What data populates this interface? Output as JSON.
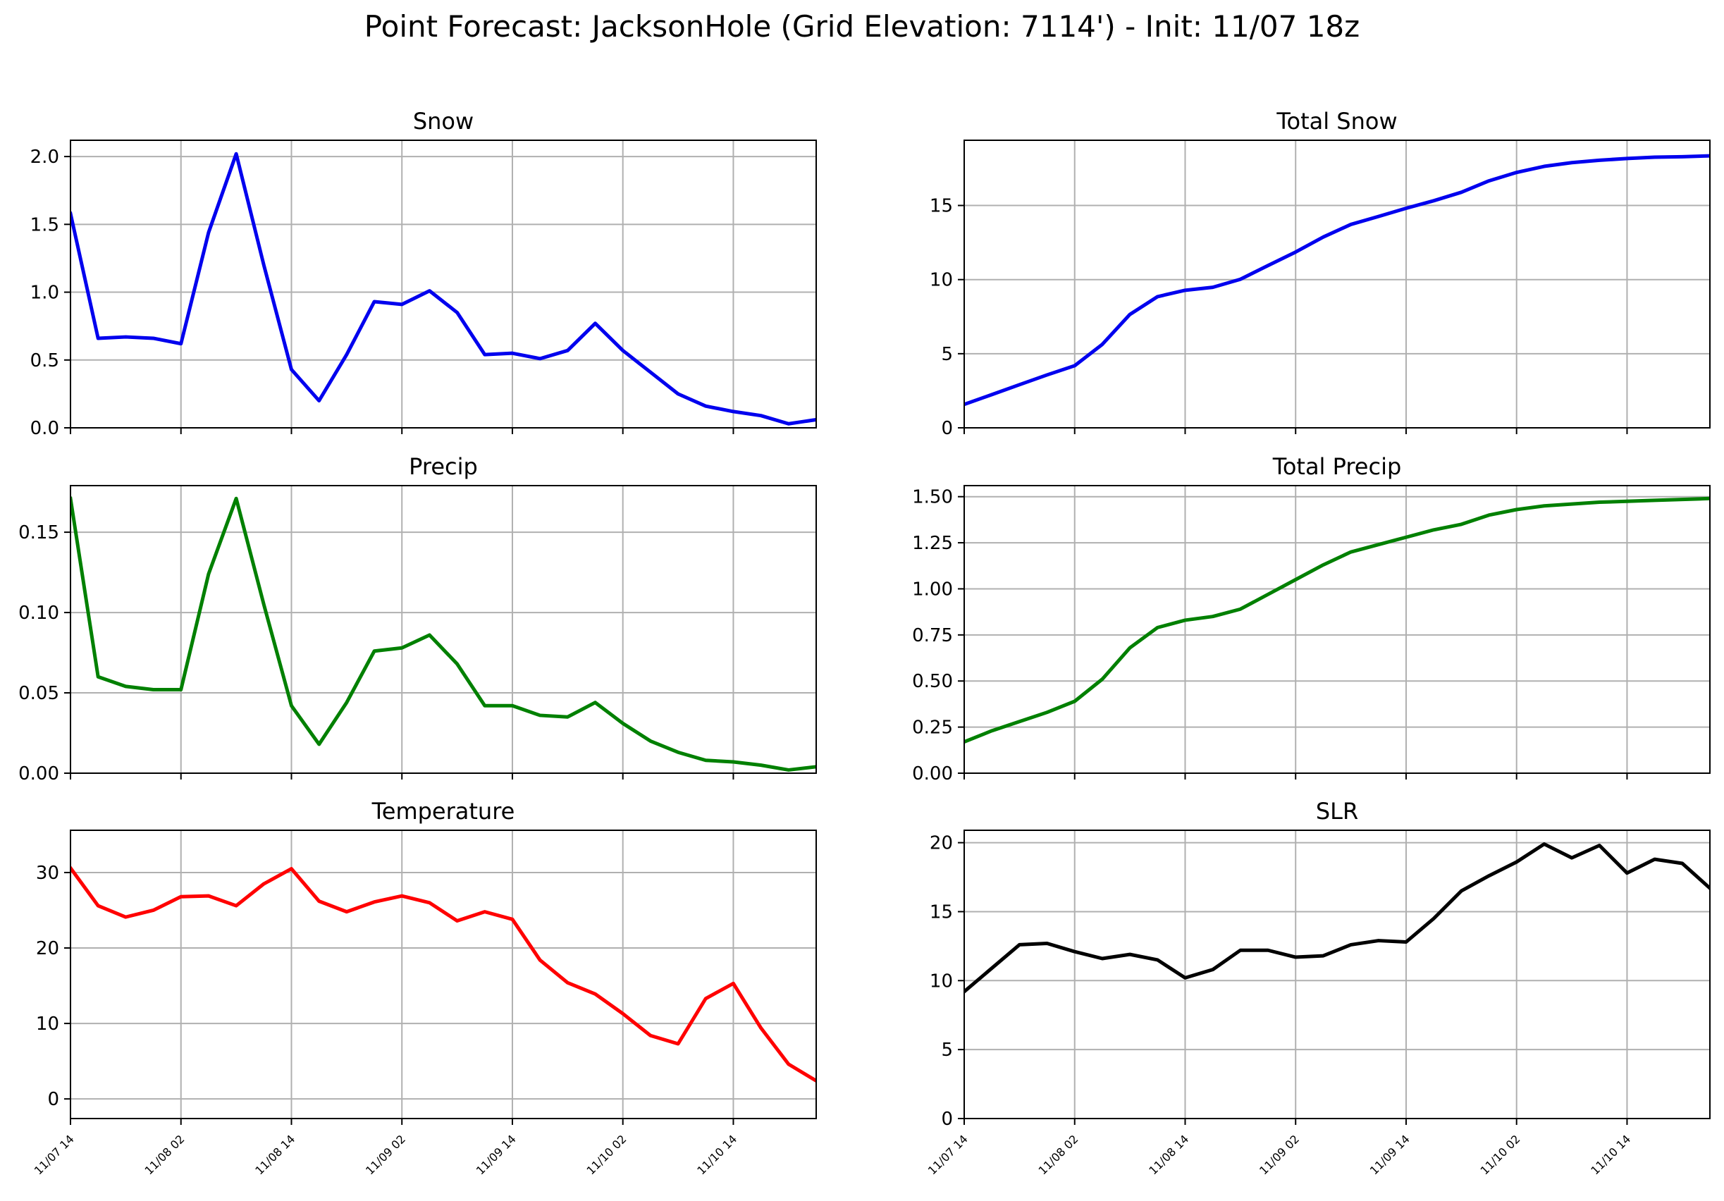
{
  "figure": {
    "title": "Point Forecast: JacksonHole (Grid Elevation: 7114') - Init: 11/07 18z"
  },
  "chart_data": [
    {
      "type": "line",
      "title": "Snow",
      "x_tick_labels": [
        "11/07 14",
        "11/08 02",
        "11/08 14",
        "11/09 02",
        "11/09 14",
        "11/10 02",
        "11/10 14"
      ],
      "y_ticks": [
        "0.0",
        "0.5",
        "1.0",
        "1.5",
        "2.0"
      ],
      "ylim": [
        0,
        2.12
      ],
      "grid": true,
      "series": [
        {
          "color": "#0000ee",
          "values": [
            1.58,
            0.66,
            0.67,
            0.66,
            0.62,
            1.44,
            2.02,
            1.2,
            0.43,
            0.2,
            0.54,
            0.93,
            0.91,
            1.01,
            0.85,
            0.54,
            0.55,
            0.51,
            0.57,
            0.77,
            0.57,
            0.41,
            0.25,
            0.16,
            0.12,
            0.09,
            0.03,
            0.06
          ]
        }
      ]
    },
    {
      "type": "line",
      "title": "Total Snow",
      "x_tick_labels": [
        "11/07 14",
        "11/08 02",
        "11/08 14",
        "11/09 02",
        "11/09 14",
        "11/10 02",
        "11/10 14"
      ],
      "y_ticks": [
        "0",
        "5",
        "10",
        "15"
      ],
      "ylim": [
        0,
        19.4
      ],
      "grid": true,
      "series": [
        {
          "color": "#0000ee",
          "values": [
            1.58,
            2.24,
            2.91,
            3.57,
            4.19,
            5.63,
            7.65,
            8.85,
            9.28,
            9.48,
            10.02,
            10.95,
            11.86,
            12.87,
            13.72,
            14.26,
            14.81,
            15.32,
            15.89,
            16.66,
            17.23,
            17.64,
            17.89,
            18.05,
            18.17,
            18.26,
            18.29,
            18.35
          ]
        }
      ]
    },
    {
      "type": "line",
      "title": "Precip",
      "x_tick_labels": [
        "11/07 14",
        "11/08 02",
        "11/08 14",
        "11/09 02",
        "11/09 14",
        "11/10 02",
        "11/10 14"
      ],
      "y_ticks": [
        "0.00",
        "0.05",
        "0.10",
        "0.15"
      ],
      "ylim": [
        0,
        0.179
      ],
      "grid": true,
      "series": [
        {
          "color": "#008000",
          "values": [
            0.171,
            0.06,
            0.054,
            0.052,
            0.052,
            0.124,
            0.171,
            0.105,
            0.042,
            0.018,
            0.044,
            0.076,
            0.078,
            0.086,
            0.068,
            0.042,
            0.042,
            0.036,
            0.035,
            0.044,
            0.031,
            0.02,
            0.013,
            0.008,
            0.007,
            0.005,
            0.002,
            0.004
          ]
        }
      ]
    },
    {
      "type": "line",
      "title": "Total Precip",
      "x_tick_labels": [
        "11/07 14",
        "11/08 02",
        "11/08 14",
        "11/09 02",
        "11/09 14",
        "11/10 02",
        "11/10 14"
      ],
      "y_ticks": [
        "0.00",
        "0.25",
        "0.50",
        "0.75",
        "1.00",
        "1.25",
        "1.50"
      ],
      "ylim": [
        0,
        1.56
      ],
      "grid": true,
      "series": [
        {
          "color": "#008000",
          "values": [
            0.17,
            0.23,
            0.28,
            0.33,
            0.39,
            0.51,
            0.68,
            0.79,
            0.83,
            0.85,
            0.89,
            0.97,
            1.05,
            1.13,
            1.2,
            1.24,
            1.28,
            1.32,
            1.35,
            1.4,
            1.43,
            1.45,
            1.46,
            1.47,
            1.475,
            1.48,
            1.485,
            1.49
          ]
        }
      ]
    },
    {
      "type": "line",
      "title": "Temperature",
      "x_tick_labels": [
        "11/07 14",
        "11/08 02",
        "11/08 14",
        "11/09 02",
        "11/09 14",
        "11/10 02",
        "11/10 14"
      ],
      "y_ticks": [
        "0",
        "10",
        "20",
        "30"
      ],
      "ylim": [
        -2.6,
        35.6
      ],
      "grid": true,
      "series": [
        {
          "color": "#ff0000",
          "values": [
            30.6,
            25.6,
            24.1,
            25.0,
            26.8,
            26.9,
            25.6,
            28.5,
            30.5,
            26.2,
            24.8,
            26.1,
            26.9,
            26.0,
            23.6,
            24.8,
            23.8,
            18.4,
            15.4,
            13.9,
            11.3,
            8.4,
            7.3,
            13.3,
            15.3,
            9.4,
            4.6,
            2.4
          ]
        }
      ]
    },
    {
      "type": "line",
      "title": "SLR",
      "x_tick_labels": [
        "11/07 14",
        "11/08 02",
        "11/08 14",
        "11/09 02",
        "11/09 14",
        "11/10 02",
        "11/10 14"
      ],
      "y_ticks": [
        "0",
        "5",
        "10",
        "15",
        "20"
      ],
      "ylim": [
        0,
        20.9
      ],
      "grid": true,
      "series": [
        {
          "color": "#000000",
          "values": [
            9.2,
            10.9,
            12.6,
            12.7,
            12.1,
            11.6,
            11.9,
            11.5,
            10.2,
            10.8,
            12.2,
            12.2,
            11.7,
            11.8,
            12.6,
            12.9,
            12.8,
            14.5,
            16.5,
            17.6,
            18.6,
            19.9,
            18.9,
            19.8,
            17.8,
            18.8,
            18.5,
            16.7
          ]
        }
      ]
    }
  ]
}
